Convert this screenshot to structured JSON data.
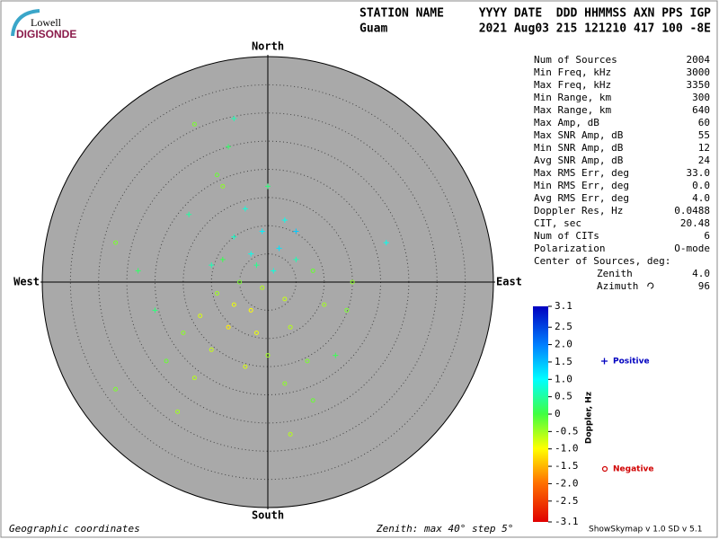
{
  "header": {
    "logo_top": "Lowell",
    "logo_bottom": "DIGISONDE",
    "line1_left": "STATION NAME",
    "line1_right": "YYYY DATE  DDD HHMMSS AXN PPS IGP",
    "line2_left": "Guam",
    "line2_right": "2021 Aug03 215 121210 417 100 -8E"
  },
  "stats": {
    "rows": [
      {
        "label": "Num of Sources",
        "value": "2004"
      },
      {
        "label": "Min Freq, kHz",
        "value": "3000"
      },
      {
        "label": "Max Freq, kHz",
        "value": "3350"
      },
      {
        "label": "Min Range, km",
        "value": "300"
      },
      {
        "label": "Max Range, km",
        "value": "640"
      },
      {
        "label": "Max Amp, dB",
        "value": "60"
      },
      {
        "label": "Max SNR Amp, dB",
        "value": "55"
      },
      {
        "label": "Min SNR Amp, dB",
        "value": "12"
      },
      {
        "label": "Avg SNR Amp, dB",
        "value": "24"
      },
      {
        "label": "Max RMS Err, deg",
        "value": "33.0"
      },
      {
        "label": "Min RMS Err, deg",
        "value": "0.0"
      },
      {
        "label": "Avg RMS Err, deg",
        "value": "4.0"
      },
      {
        "label": "Doppler Res, Hz",
        "value": "0.0488"
      },
      {
        "label": "CIT, sec",
        "value": "20.48"
      },
      {
        "label": "Num of CITs",
        "value": "6"
      },
      {
        "label": "Polarization",
        "value": "O-mode"
      }
    ],
    "center_heading": "Center of Sources, deg:",
    "center_rows": [
      {
        "label": "Zenith",
        "value": "4.0"
      },
      {
        "label": "Azimuth",
        "value": "96"
      }
    ]
  },
  "chart_data": {
    "type": "polar_scatter",
    "directions": {
      "north": "North",
      "south": "South",
      "east": "East",
      "west": "West"
    },
    "rlim": [
      0,
      40
    ],
    "rticks": [
      5,
      10,
      15,
      20,
      25,
      30,
      35,
      40
    ],
    "x": [
      -13,
      -6,
      -7,
      -9,
      -8,
      0,
      -14,
      -4,
      3,
      -1,
      -6,
      2,
      -3,
      5,
      -8,
      -2,
      1,
      21,
      -27,
      -23,
      8,
      15,
      -5,
      -1,
      -9,
      3,
      -6,
      -3,
      10,
      14,
      -12,
      -7,
      -2,
      4,
      -15,
      -10,
      0,
      -4,
      7,
      -13,
      -18,
      3,
      -27,
      -16,
      4,
      8,
      12,
      -20,
      5,
      -10
    ],
    "y": [
      28,
      29,
      24,
      19,
      17,
      17,
      12,
      13,
      11,
      9,
      8,
      6,
      5,
      4,
      4,
      3,
      2,
      7,
      7,
      2,
      2,
      0,
      0,
      -1,
      -2,
      -3,
      -4,
      -5,
      -4,
      -5,
      -6,
      -8,
      -9,
      -8,
      -9,
      -12,
      -13,
      -15,
      -14,
      -17,
      -14,
      -18,
      -19,
      -23,
      -27,
      -21,
      -13,
      -5,
      9,
      3
    ],
    "doppler": [
      -0.3,
      0.6,
      0.2,
      -0.2,
      -0.4,
      0.3,
      0.5,
      0.8,
      0.9,
      1.1,
      0.7,
      1.2,
      0.9,
      0.6,
      0.1,
      0.4,
      0.8,
      0.9,
      -0.3,
      0.2,
      -0.2,
      -0.4,
      -0.3,
      -0.6,
      -0.5,
      -0.7,
      -0.9,
      -1.0,
      -0.5,
      -0.3,
      -0.8,
      -1.1,
      -0.9,
      -0.6,
      -0.4,
      -0.7,
      -0.5,
      -0.8,
      -0.3,
      -0.6,
      -0.2,
      -0.4,
      -0.3,
      -0.5,
      -0.6,
      -0.2,
      0.1,
      0.3,
      1.4,
      0.6
    ],
    "colorbar": {
      "label": "Doppler, Hz",
      "lim": [
        -3.1,
        3.1
      ],
      "ticks": [
        3.1,
        2.5,
        {
          "value": 2,
          "label": "2.0"
        },
        1.5,
        {
          "value": 1,
          "label": "1.0"
        },
        0.5,
        0,
        -0.5,
        {
          "value": -1,
          "label": "-1.0"
        },
        -1.5,
        {
          "value": -2,
          "label": "-2.0"
        },
        -2.5,
        -3.1
      ]
    },
    "legend": {
      "positive": "Positive",
      "negative": "Negative",
      "positive_color": "#0000c0",
      "negative_color": "#d00000"
    }
  },
  "footer": {
    "left": "Geographic coordinates",
    "middle": "Zenith: max 40°  step 5°",
    "right": "ShowSkymap v 1.0  SD v 5.1"
  }
}
